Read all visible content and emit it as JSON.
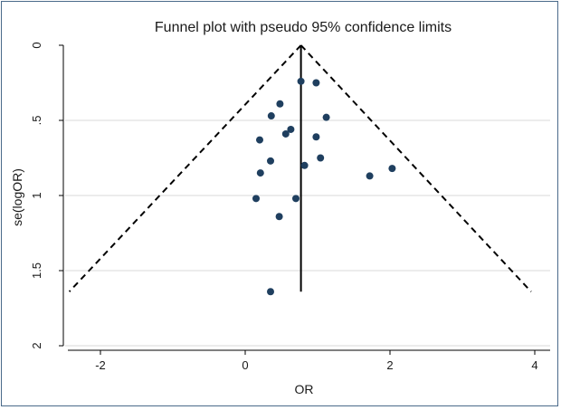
{
  "chart_data": {
    "type": "scatter",
    "title": "Funnel plot with pseudo 95% confidence limits",
    "xlabel": "OR",
    "ylabel": "se(logOR)",
    "xlim": [
      -2.4,
      4
    ],
    "ylim": [
      0,
      2
    ],
    "y_inverted": true,
    "x_ticks": [
      -2,
      0,
      2,
      4
    ],
    "y_ticks": [
      0,
      0.5,
      1,
      1.5,
      2
    ],
    "x_tick_labels": [
      "-2",
      "0",
      "2",
      "4"
    ],
    "y_tick_labels": [
      "0",
      ".5",
      "1",
      "1.5",
      "2"
    ],
    "grid": "horizontal",
    "colors": {
      "point": "#1f3f5f",
      "line": "#000000",
      "grid": "#d9d9d9",
      "border": "#4a6a8a"
    },
    "pooled_estimate": 0.77,
    "confidence_limits": {
      "label": "pseudo 95% confidence limits",
      "apex": [
        0.77,
        0
      ],
      "lower_end": [
        -2.43,
        1.64
      ],
      "upper_end": [
        3.95,
        1.64
      ],
      "line_style": "dashed"
    },
    "points": [
      {
        "x": 0.77,
        "y": 0.24
      },
      {
        "x": 0.98,
        "y": 0.25
      },
      {
        "x": 0.48,
        "y": 0.39
      },
      {
        "x": 0.36,
        "y": 0.47
      },
      {
        "x": 1.12,
        "y": 0.48
      },
      {
        "x": 0.63,
        "y": 0.56
      },
      {
        "x": 0.56,
        "y": 0.59
      },
      {
        "x": 0.98,
        "y": 0.61
      },
      {
        "x": 0.2,
        "y": 0.63
      },
      {
        "x": 1.04,
        "y": 0.75
      },
      {
        "x": 0.35,
        "y": 0.77
      },
      {
        "x": 0.82,
        "y": 0.8
      },
      {
        "x": 2.03,
        "y": 0.82
      },
      {
        "x": 0.21,
        "y": 0.85
      },
      {
        "x": 1.72,
        "y": 0.87
      },
      {
        "x": 0.15,
        "y": 1.02
      },
      {
        "x": 0.7,
        "y": 1.02
      },
      {
        "x": 0.47,
        "y": 1.14
      },
      {
        "x": 0.35,
        "y": 1.64
      }
    ]
  }
}
